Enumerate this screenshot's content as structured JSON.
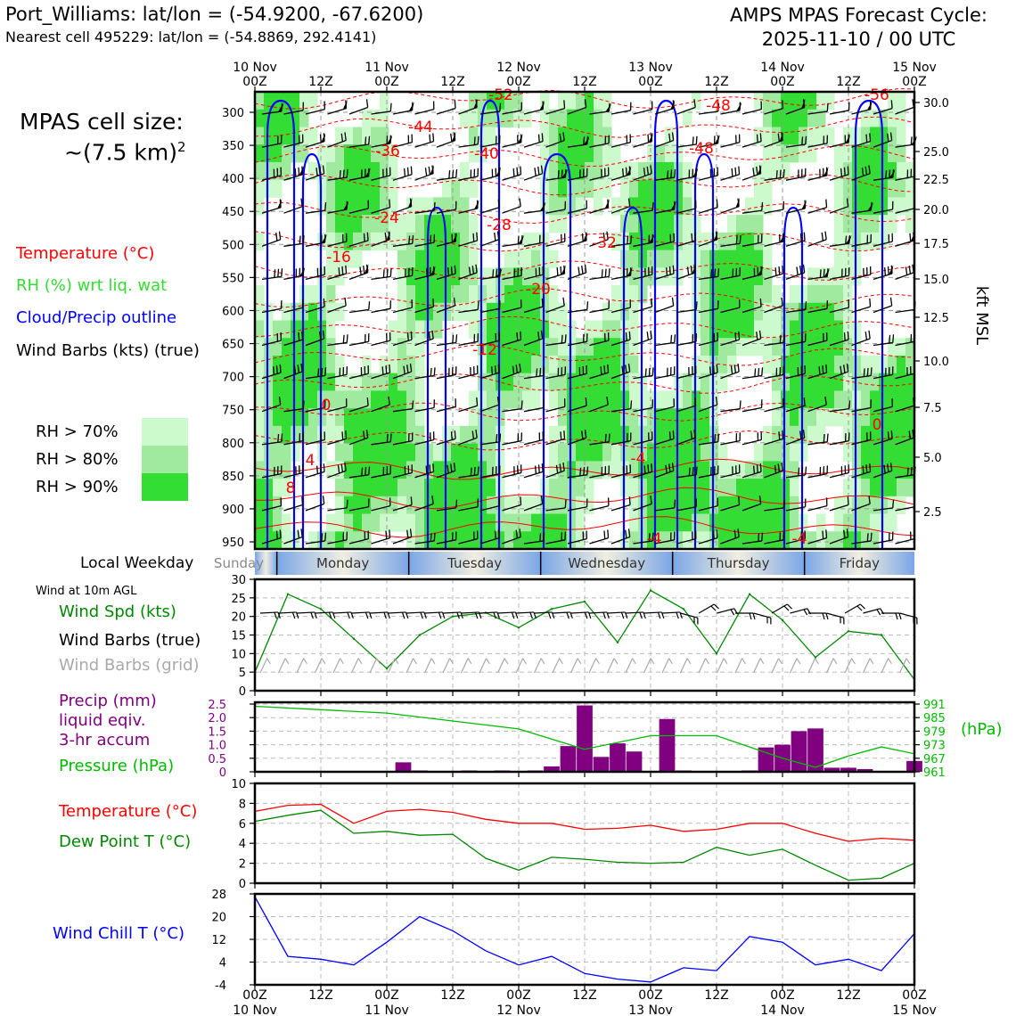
{
  "header": {
    "station_line": "Port_Williams: lat/lon = (-54.9200, -67.6200)",
    "cell_line": "Nearest cell 495229: lat/lon = (-54.8869, 292.4141)",
    "forecast_title": "AMPS MPAS Forecast Cycle:",
    "forecast_cycle": "2025-11-10 / 00 UTC"
  },
  "cell_size": {
    "label": "MPAS cell size:",
    "value": "~(7.5 km)",
    "exponent": "2"
  },
  "legend": {
    "temperature": "Temperature (°C)",
    "rh": "RH (%) wrt liq. wat",
    "cloud": "Cloud/Precip outline",
    "wind": "Wind Barbs (kts) (true)",
    "rh70": "RH > 70%",
    "rh80": "RH > 80%",
    "rh90": "RH > 90%"
  },
  "colors": {
    "temperature": "#ff0000",
    "rh_label": "#33dd33",
    "cloud": "#0000ff",
    "rh70": "#ccfacc",
    "rh80": "#a0eaa0",
    "rh90": "#33dd33",
    "wind_speed": "#008800",
    "precip": "#800080",
    "pressure": "#00bb00",
    "dewpoint": "#008800",
    "windchill": "#0000ff",
    "grid_barbs": "#aaaaaa"
  },
  "time_axis": {
    "top_labels": [
      {
        "l1": "10 Nov",
        "l2": "00Z"
      },
      {
        "l1": "",
        "l2": "12Z"
      },
      {
        "l1": "11 Nov",
        "l2": "00Z"
      },
      {
        "l1": "",
        "l2": "12Z"
      },
      {
        "l1": "12 Nov",
        "l2": "00Z"
      },
      {
        "l1": "",
        "l2": "12Z"
      },
      {
        "l1": "13 Nov",
        "l2": "00Z"
      },
      {
        "l1": "",
        "l2": "12Z"
      },
      {
        "l1": "14 Nov",
        "l2": "00Z"
      },
      {
        "l1": "",
        "l2": "12Z"
      },
      {
        "l1": "15 Nov",
        "l2": "00Z"
      }
    ],
    "bottom_labels": [
      {
        "l1": "00Z",
        "l2": "10 Nov"
      },
      {
        "l1": "12Z",
        "l2": ""
      },
      {
        "l1": "00Z",
        "l2": "11 Nov"
      },
      {
        "l1": "12Z",
        "l2": ""
      },
      {
        "l1": "00Z",
        "l2": "12 Nov"
      },
      {
        "l1": "12Z",
        "l2": ""
      },
      {
        "l1": "00Z",
        "l2": "13 Nov"
      },
      {
        "l1": "12Z",
        "l2": ""
      },
      {
        "l1": "00Z",
        "l2": "14 Nov"
      },
      {
        "l1": "12Z",
        "l2": ""
      },
      {
        "l1": "00Z",
        "l2": "15 Nov"
      }
    ]
  },
  "weekday_bar": {
    "label": "Local Weekday",
    "days": [
      "Sunday",
      "Monday",
      "Tuesday",
      "Wednesday",
      "Thursday",
      "Friday"
    ]
  },
  "wind10": {
    "title": "Wind at 10m AGL",
    "spd_label": "Wind Spd (kts)",
    "barb_label": "Wind Barbs (true)",
    "grid_label": "Wind Barbs (grid)"
  },
  "precip_labels": {
    "l1": "Precip (mm)",
    "l2": "liquid eqiv.",
    "l3": "3-hr accum",
    "pressure": "Pressure (hPa)",
    "hpa": "(hPa)"
  },
  "temp_labels": {
    "temp": "Temperature (°C)",
    "dew": "Dew Point T (°C)"
  },
  "chill_label": "Wind Chill T (°C)",
  "chart_data": [
    {
      "type": "heatmap",
      "name": "cross-section",
      "y_ticks": [
        "300",
        "350",
        "400",
        "450",
        "500",
        "550",
        "600",
        "650",
        "700",
        "750",
        "800",
        "850",
        "900",
        "950"
      ],
      "y_right_ticks": [
        "30.0",
        "25.0",
        "22.5",
        "20.0",
        "17.5",
        "15.0",
        "12.5",
        "10.0",
        "7.5",
        "5.0",
        "2.5"
      ],
      "y_right_label": "kft MSL",
      "temp_labels": [
        "-52",
        "-48",
        "-56",
        "-48",
        "-44",
        "-36",
        "-40",
        "-24",
        "-28",
        "-16",
        "-32",
        "-20",
        "-12",
        "0",
        "4",
        "8",
        "-4",
        "-4",
        "-4",
        "0"
      ]
    },
    {
      "type": "line",
      "name": "wind-speed-10m",
      "ylim": [
        0,
        30
      ],
      "y_ticks": [
        "0",
        "5",
        "10",
        "15",
        "20",
        "25",
        "30"
      ],
      "x_hours": [
        0,
        6,
        12,
        18,
        24,
        30,
        36,
        42,
        48,
        54,
        60,
        66,
        72,
        78,
        84,
        90,
        96,
        102,
        108,
        114,
        120
      ],
      "values": [
        5,
        26,
        22,
        14,
        6,
        15,
        20,
        21,
        17,
        22,
        24,
        13,
        27,
        22,
        10,
        26,
        19,
        9,
        16,
        15,
        3
      ]
    },
    {
      "type": "bar",
      "name": "precip-pressure",
      "ylim": [
        0,
        2.5
      ],
      "y_ticks": [
        "0",
        "0.5",
        "1.0",
        "1.5",
        "2.0",
        "2.5"
      ],
      "pressure_ticks": [
        "961",
        "967",
        "973",
        "979",
        "985",
        "991"
      ],
      "x_hours": [
        27,
        30,
        39,
        45,
        51,
        54,
        57,
        60,
        63,
        66,
        69,
        75,
        78,
        90,
        93,
        96,
        99,
        102,
        105,
        108,
        111,
        120
      ],
      "precip": [
        0.35,
        0.05,
        0.05,
        0.05,
        0.05,
        0.2,
        0.95,
        2.45,
        0.55,
        1.05,
        0.75,
        1.95,
        0.05,
        0.05,
        0.9,
        1.0,
        1.5,
        1.6,
        0.15,
        0.15,
        0.1,
        0.4
      ],
      "pressure_x": [
        0,
        24,
        48,
        60,
        72,
        84,
        96,
        102,
        108,
        114,
        120
      ],
      "pressure": [
        990,
        987,
        980,
        971,
        977,
        977,
        967,
        963,
        968,
        972,
        969
      ]
    },
    {
      "type": "line",
      "name": "temperature-dewpoint",
      "ylim": [
        0,
        10
      ],
      "y_ticks": [
        "0",
        "2",
        "4",
        "6",
        "8",
        "10"
      ],
      "x_hours": [
        0,
        6,
        12,
        18,
        24,
        30,
        36,
        42,
        48,
        54,
        60,
        66,
        72,
        78,
        84,
        90,
        96,
        102,
        108,
        114,
        120
      ],
      "series": [
        {
          "values": [
            7.2,
            7.8,
            7.9,
            6.0,
            7.2,
            7.4,
            7.1,
            6.4,
            6.0,
            6.0,
            5.4,
            5.5,
            5.8,
            5.2,
            5.4,
            6.0,
            6.0,
            5.0,
            4.2,
            4.5,
            4.3
          ]
        },
        {
          "values": [
            6.2,
            6.8,
            7.3,
            5.0,
            5.2,
            4.8,
            4.9,
            2.5,
            1.3,
            2.6,
            2.4,
            2.1,
            2.0,
            2.1,
            3.6,
            2.8,
            3.4,
            1.8,
            0.3,
            0.5,
            2.0
          ]
        }
      ]
    },
    {
      "type": "line",
      "name": "wind-chill",
      "ylim": [
        -4,
        28
      ],
      "y_ticks": [
        "-4",
        "4",
        "12",
        "20",
        "28"
      ],
      "x_hours": [
        0,
        6,
        12,
        18,
        24,
        30,
        36,
        42,
        48,
        54,
        60,
        66,
        72,
        78,
        84,
        90,
        96,
        102,
        108,
        114,
        120
      ],
      "values": [
        27,
        6,
        5,
        3,
        11,
        20,
        15,
        8,
        3,
        6,
        0,
        -2,
        -3,
        2,
        1,
        13,
        11,
        3,
        5,
        1,
        14
      ]
    }
  ]
}
